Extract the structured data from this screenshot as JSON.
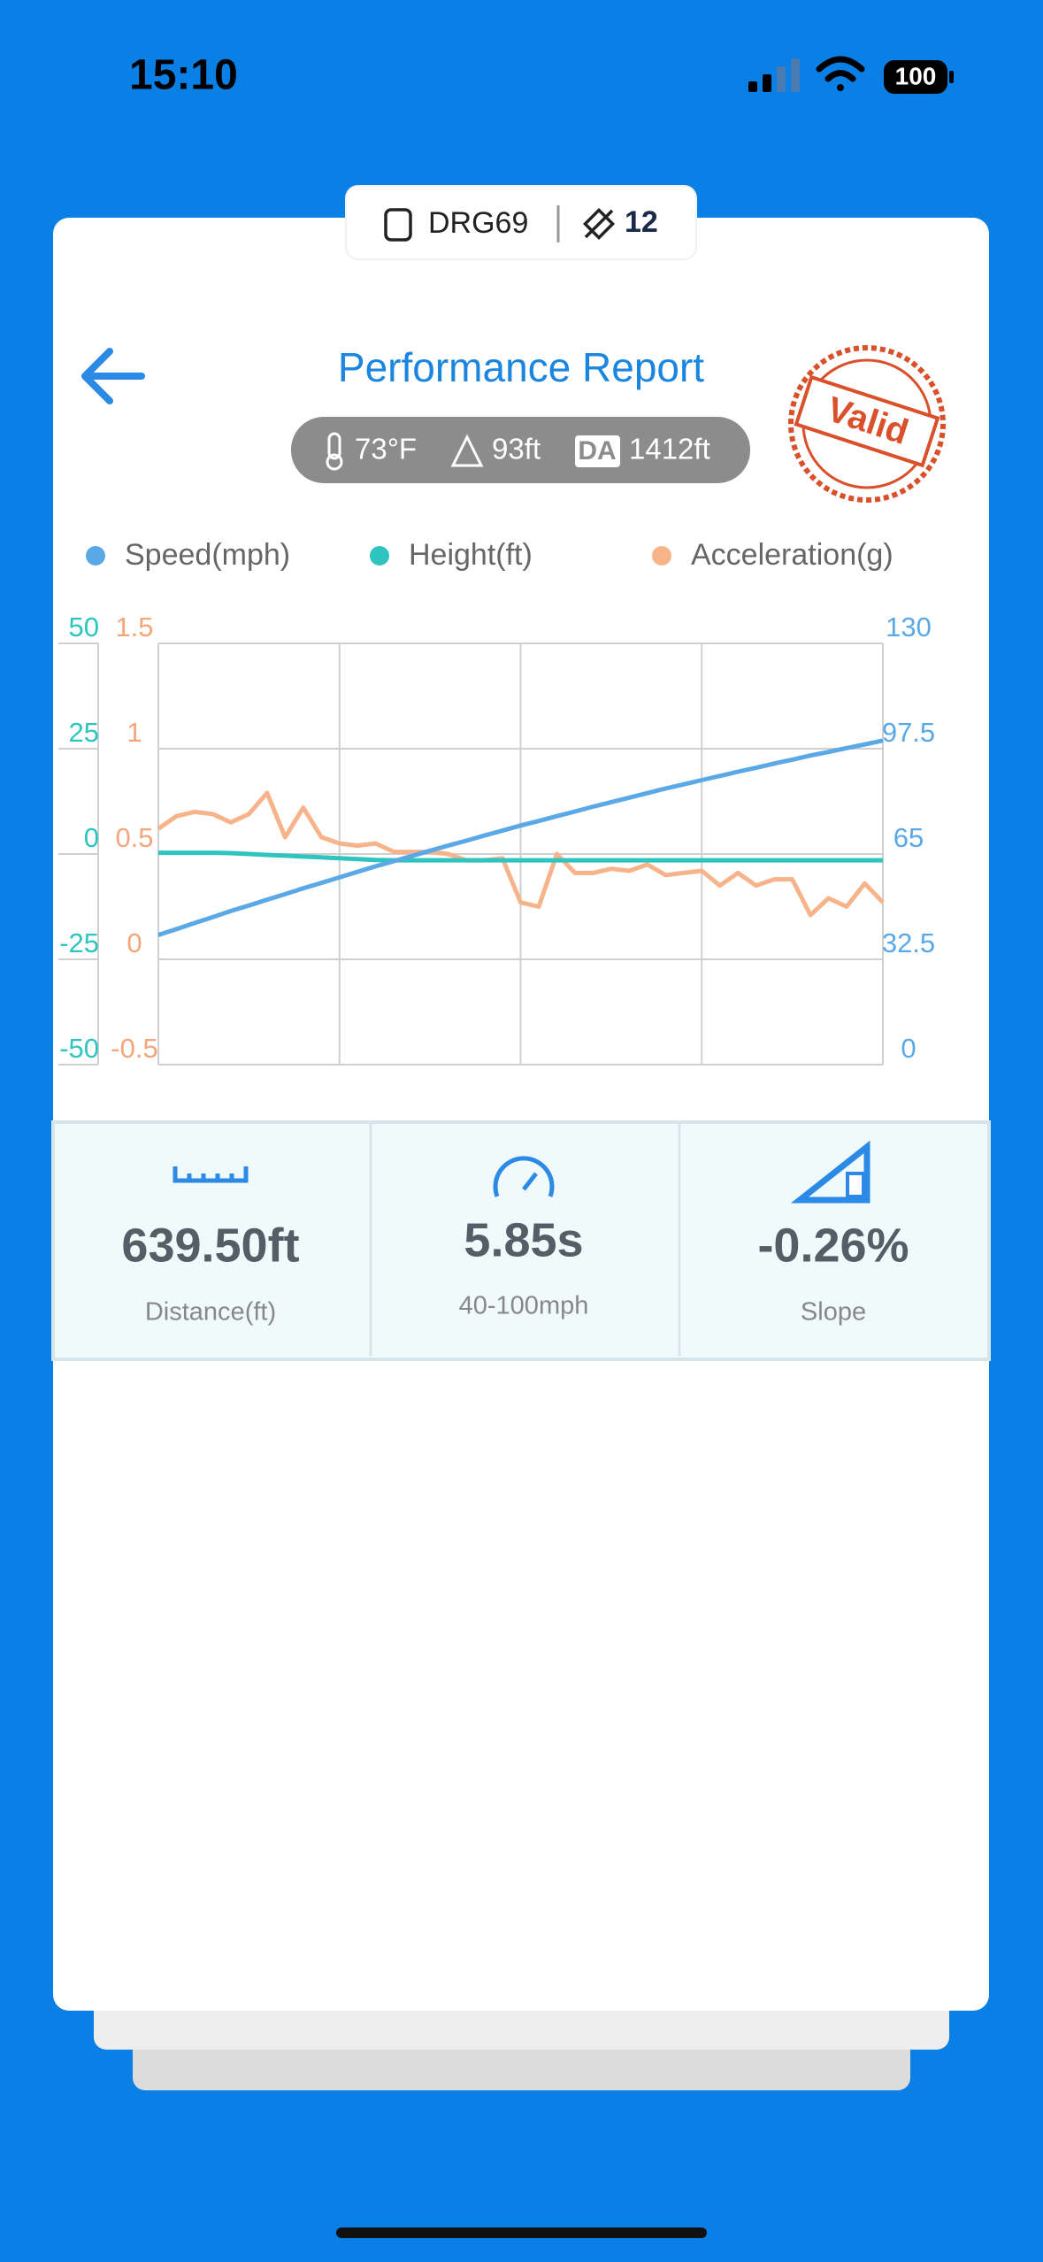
{
  "status_bar": {
    "time": "15:10",
    "battery": "100"
  },
  "device": {
    "name": "DRG69",
    "satellites": "12"
  },
  "header": {
    "title": "Performance Report",
    "stamp": "Valid"
  },
  "conditions": {
    "temperature": "73°F",
    "altitude": "93ft",
    "da_label": "DA",
    "density_altitude": "1412ft"
  },
  "chart_data": {
    "type": "line",
    "series": [
      {
        "name": "Speed(mph)",
        "color": "#5aa9e6",
        "axis": "y2",
        "values": [
          40.0,
          41.8,
          43.7,
          45.5,
          47.4,
          49.1,
          50.9,
          52.6,
          54.4,
          56.1,
          57.8,
          59.5,
          61.2,
          62.8,
          64.4,
          66.0,
          67.6,
          69.1,
          70.7,
          72.2,
          73.8,
          75.2,
          76.7,
          78.1,
          79.6,
          81.0,
          82.4,
          83.8,
          85.2,
          86.5,
          87.8,
          89.1,
          90.4,
          91.6,
          92.9,
          94.1,
          95.4,
          96.5,
          97.7,
          98.8,
          100.0
        ]
      },
      {
        "name": "Height(ft)",
        "color": "#2ec4c0",
        "values": [
          0.3,
          0.3,
          0.3,
          0.3,
          0.2,
          0.0,
          -0.2,
          -0.4,
          -0.6,
          -0.8,
          -1.0,
          -1.2,
          -1.4,
          -1.5,
          -1.5,
          -1.5,
          -1.5,
          -1.5,
          -1.5,
          -1.5,
          -1.5,
          -1.5,
          -1.5,
          -1.5,
          -1.5,
          -1.5,
          -1.5,
          -1.5,
          -1.5,
          -1.5,
          -1.5,
          -1.5,
          -1.5,
          -1.5,
          -1.5,
          -1.5,
          -1.5,
          -1.5,
          -1.5,
          -1.5,
          -1.5
        ]
      },
      {
        "name": "Acceleration(g)",
        "color": "#f7b48a",
        "axis": "y3",
        "values": [
          0.62,
          0.68,
          0.7,
          0.69,
          0.65,
          0.69,
          0.79,
          0.58,
          0.72,
          0.58,
          0.55,
          0.54,
          0.55,
          0.51,
          0.51,
          0.51,
          0.5,
          0.47,
          0.47,
          0.48,
          0.27,
          0.25,
          0.5,
          0.41,
          0.41,
          0.43,
          0.42,
          0.45,
          0.4,
          0.41,
          0.42,
          0.35,
          0.41,
          0.35,
          0.38,
          0.38,
          0.21,
          0.29,
          0.25,
          0.36,
          0.27
        ]
      }
    ],
    "ylim": [
      -50,
      50
    ],
    "yticks": [
      -50,
      -25,
      0,
      25,
      50
    ],
    "y2lim": [
      0,
      130
    ],
    "y2ticks": [
      0,
      32.5,
      65,
      97.5,
      130
    ],
    "y3lim": [
      -0.5,
      1.5
    ],
    "y3ticks": [
      -0.5,
      0,
      0.5,
      1,
      1.5
    ],
    "axis_colors": {
      "y": "#2ec4c0",
      "y2": "#5aa9e6",
      "y3": "#f4a57a"
    },
    "grid": true
  },
  "stats": [
    {
      "value": "639.50ft",
      "label": "Distance(ft)"
    },
    {
      "value": "5.85s",
      "label": "40-100mph"
    },
    {
      "value": "-0.26%",
      "label": "Slope"
    }
  ]
}
